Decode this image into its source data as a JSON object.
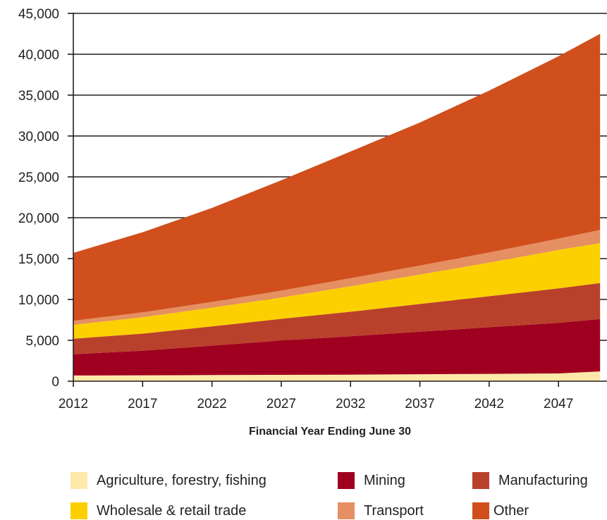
{
  "chart_data": {
    "type": "area",
    "stacked": true,
    "xlabel": "Financial Year Ending June 30",
    "ylabel": "",
    "title": "",
    "x": [
      2012,
      2017,
      2022,
      2027,
      2032,
      2037,
      2042,
      2047,
      2050
    ],
    "x_ticks": [
      "2012",
      "2017",
      "2022",
      "2027",
      "2032",
      "2037",
      "2042",
      "2047"
    ],
    "y_ticks": [
      "0",
      "5,000",
      "10,000",
      "15,000",
      "20,000",
      "25,000",
      "30,000",
      "35,000",
      "40,000",
      "45,000"
    ],
    "ylim": [
      0,
      45000
    ],
    "grid": "horizontal",
    "legend_position": "bottom",
    "series": [
      {
        "name": "Agriculture, forestry, fishing",
        "color": "#fde9a9",
        "values": [
          700,
          720,
          750,
          780,
          800,
          850,
          900,
          950,
          1200
        ]
      },
      {
        "name": "Mining",
        "color": "#a0001f",
        "values": [
          2600,
          3000,
          3600,
          4200,
          4700,
          5200,
          5700,
          6200,
          6400
        ]
      },
      {
        "name": "Manufacturing",
        "color": "#b9412b",
        "values": [
          1900,
          2100,
          2350,
          2650,
          3000,
          3400,
          3800,
          4200,
          4400
        ]
      },
      {
        "name": "Wholesale & retail trade",
        "color": "#fcd000",
        "values": [
          1700,
          2000,
          2300,
          2600,
          3100,
          3600,
          4100,
          4700,
          4900
        ]
      },
      {
        "name": "Transport",
        "color": "#e58f62",
        "values": [
          500,
          600,
          700,
          850,
          1000,
          1100,
          1250,
          1400,
          1600
        ]
      },
      {
        "name": "Other",
        "color": "#d04f1c",
        "values": [
          8300,
          9800,
          11500,
          13500,
          15500,
          17500,
          19800,
          22300,
          24000
        ]
      }
    ]
  }
}
